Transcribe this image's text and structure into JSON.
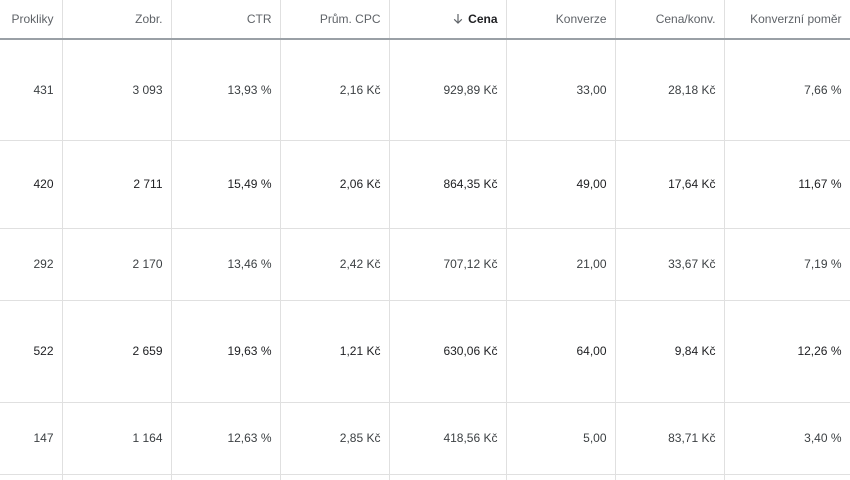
{
  "columns": [
    {
      "label": "Prokliky"
    },
    {
      "label": "Zobr."
    },
    {
      "label": "CTR"
    },
    {
      "label": "Prům. CPC"
    },
    {
      "label": "Cena",
      "sorted": "descending",
      "sort_icon": "arrow-down-icon"
    },
    {
      "label": "Konverze"
    },
    {
      "label": "Cena/konv."
    },
    {
      "label": "Konverzní poměr"
    }
  ],
  "rows": [
    {
      "prokliky": "431",
      "zobr": "3 093",
      "ctr": "13,93 %",
      "cpc": "2,16 Kč",
      "cena": "929,89 Kč",
      "konverze": "33,00",
      "cena_konv": "28,18 Kč",
      "konv_pomer": "7,66 %"
    },
    {
      "prokliky": "420",
      "zobr": "2 711",
      "ctr": "15,49 %",
      "cpc": "2,06 Kč",
      "cena": "864,35 Kč",
      "konverze": "49,00",
      "cena_konv": "17,64 Kč",
      "konv_pomer": "11,67 %"
    },
    {
      "prokliky": "292",
      "zobr": "2 170",
      "ctr": "13,46 %",
      "cpc": "2,42 Kč",
      "cena": "707,12 Kč",
      "konverze": "21,00",
      "cena_konv": "33,67 Kč",
      "konv_pomer": "7,19 %"
    },
    {
      "prokliky": "522",
      "zobr": "2 659",
      "ctr": "19,63 %",
      "cpc": "1,21 Kč",
      "cena": "630,06 Kč",
      "konverze": "64,00",
      "cena_konv": "9,84 Kč",
      "konv_pomer": "12,26 %"
    },
    {
      "prokliky": "147",
      "zobr": "1 164",
      "ctr": "12,63 %",
      "cpc": "2,85 Kč",
      "cena": "418,56 Kč",
      "konverze": "5,00",
      "cena_konv": "83,71 Kč",
      "konv_pomer": "3,40 %"
    }
  ],
  "colors": {
    "header_text": "#5f6368",
    "sorted_header_text": "#202124",
    "cell_text": "#3c4043",
    "grid_line": "#e0e0e0",
    "header_underline": "#9aa0a6"
  }
}
